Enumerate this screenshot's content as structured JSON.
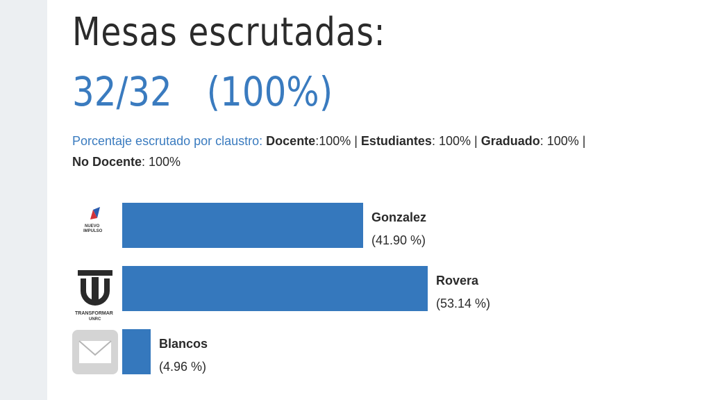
{
  "header": {
    "title": "Mesas escrutadas:",
    "progress_count": "32/32",
    "progress_percent": "(100%)"
  },
  "claustro": {
    "lead": "Porcentaje escrutado por claustro:",
    "items": [
      {
        "label": "Docente",
        "value": ":100%"
      },
      {
        "label": "Estudiantes",
        "value": ": 100%"
      },
      {
        "label": "Graduado",
        "value": ": 100%"
      },
      {
        "label": "No Docente",
        "value": ": 100%"
      }
    ],
    "separator": " | "
  },
  "logos": {
    "gonzalez_text_1": "NUEVO",
    "gonzalez_text_2": "IMPULSO",
    "rovera_text_1": "TRANSFORMAR",
    "rovera_text_2": "UNRC"
  },
  "chart_data": {
    "type": "bar",
    "orientation": "horizontal",
    "categories": [
      "Gonzalez",
      "Rovera",
      "Blancos"
    ],
    "values": [
      41.9,
      53.14,
      4.96
    ],
    "value_labels": [
      "(41.90 %)",
      "(53.14 %)",
      "(4.96 %)"
    ],
    "unit": "%",
    "color": "#3578bd",
    "xlim": [
      0,
      53.14
    ]
  }
}
